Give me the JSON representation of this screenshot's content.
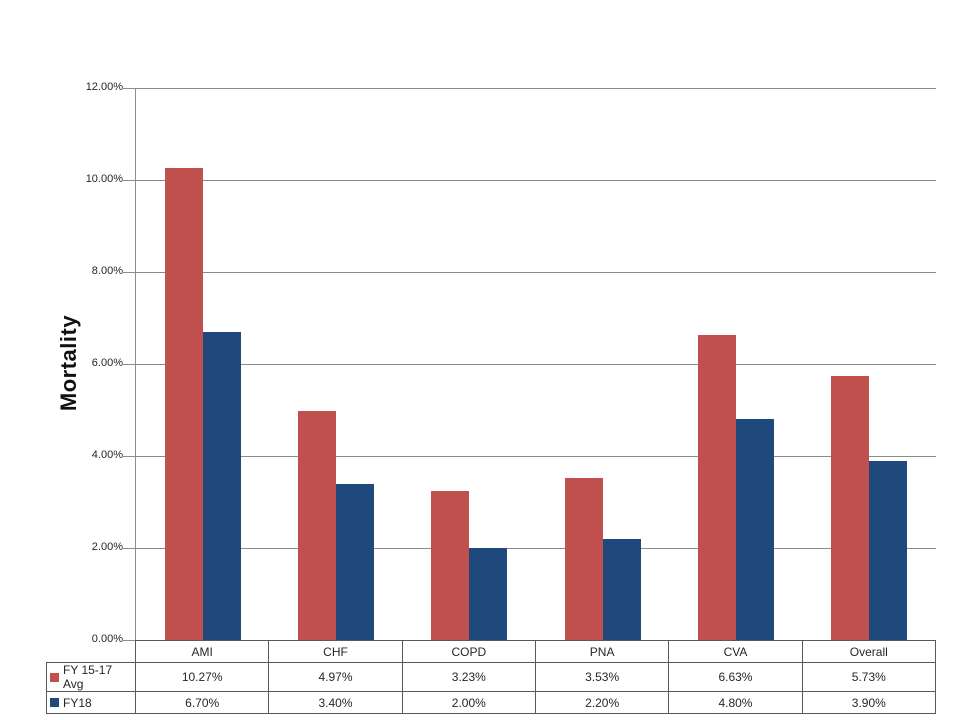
{
  "chart_data": {
    "type": "bar",
    "title": "",
    "ylabel": "Mortality",
    "categories": [
      "AMI",
      "CHF",
      "COPD",
      "PNA",
      "CVA",
      "Overall"
    ],
    "series": [
      {
        "name": "FY 15-17 Avg",
        "color": "#C0504D",
        "values": [
          10.27,
          4.97,
          3.23,
          3.53,
          6.63,
          5.73
        ],
        "labels": [
          "10.27%",
          "4.97%",
          "3.23%",
          "3.53%",
          "6.63%",
          "5.73%"
        ]
      },
      {
        "name": "FY18",
        "color": "#1F497D",
        "values": [
          6.7,
          3.4,
          2.0,
          2.2,
          4.8,
          3.9
        ],
        "labels": [
          "6.70%",
          "3.40%",
          "2.00%",
          "2.20%",
          "4.80%",
          "3.90%"
        ]
      }
    ],
    "y_axis": {
      "min": 0,
      "max": 12,
      "step": 2,
      "tick_labels": [
        "0.00%",
        "2.00%",
        "4.00%",
        "6.00%",
        "8.00%",
        "10.00%",
        "12.00%"
      ]
    },
    "grid": true,
    "legend_position": "data-table",
    "colors": {
      "gridline": "#8C8C8C",
      "table_border": "#595959",
      "text": "#262626"
    }
  }
}
